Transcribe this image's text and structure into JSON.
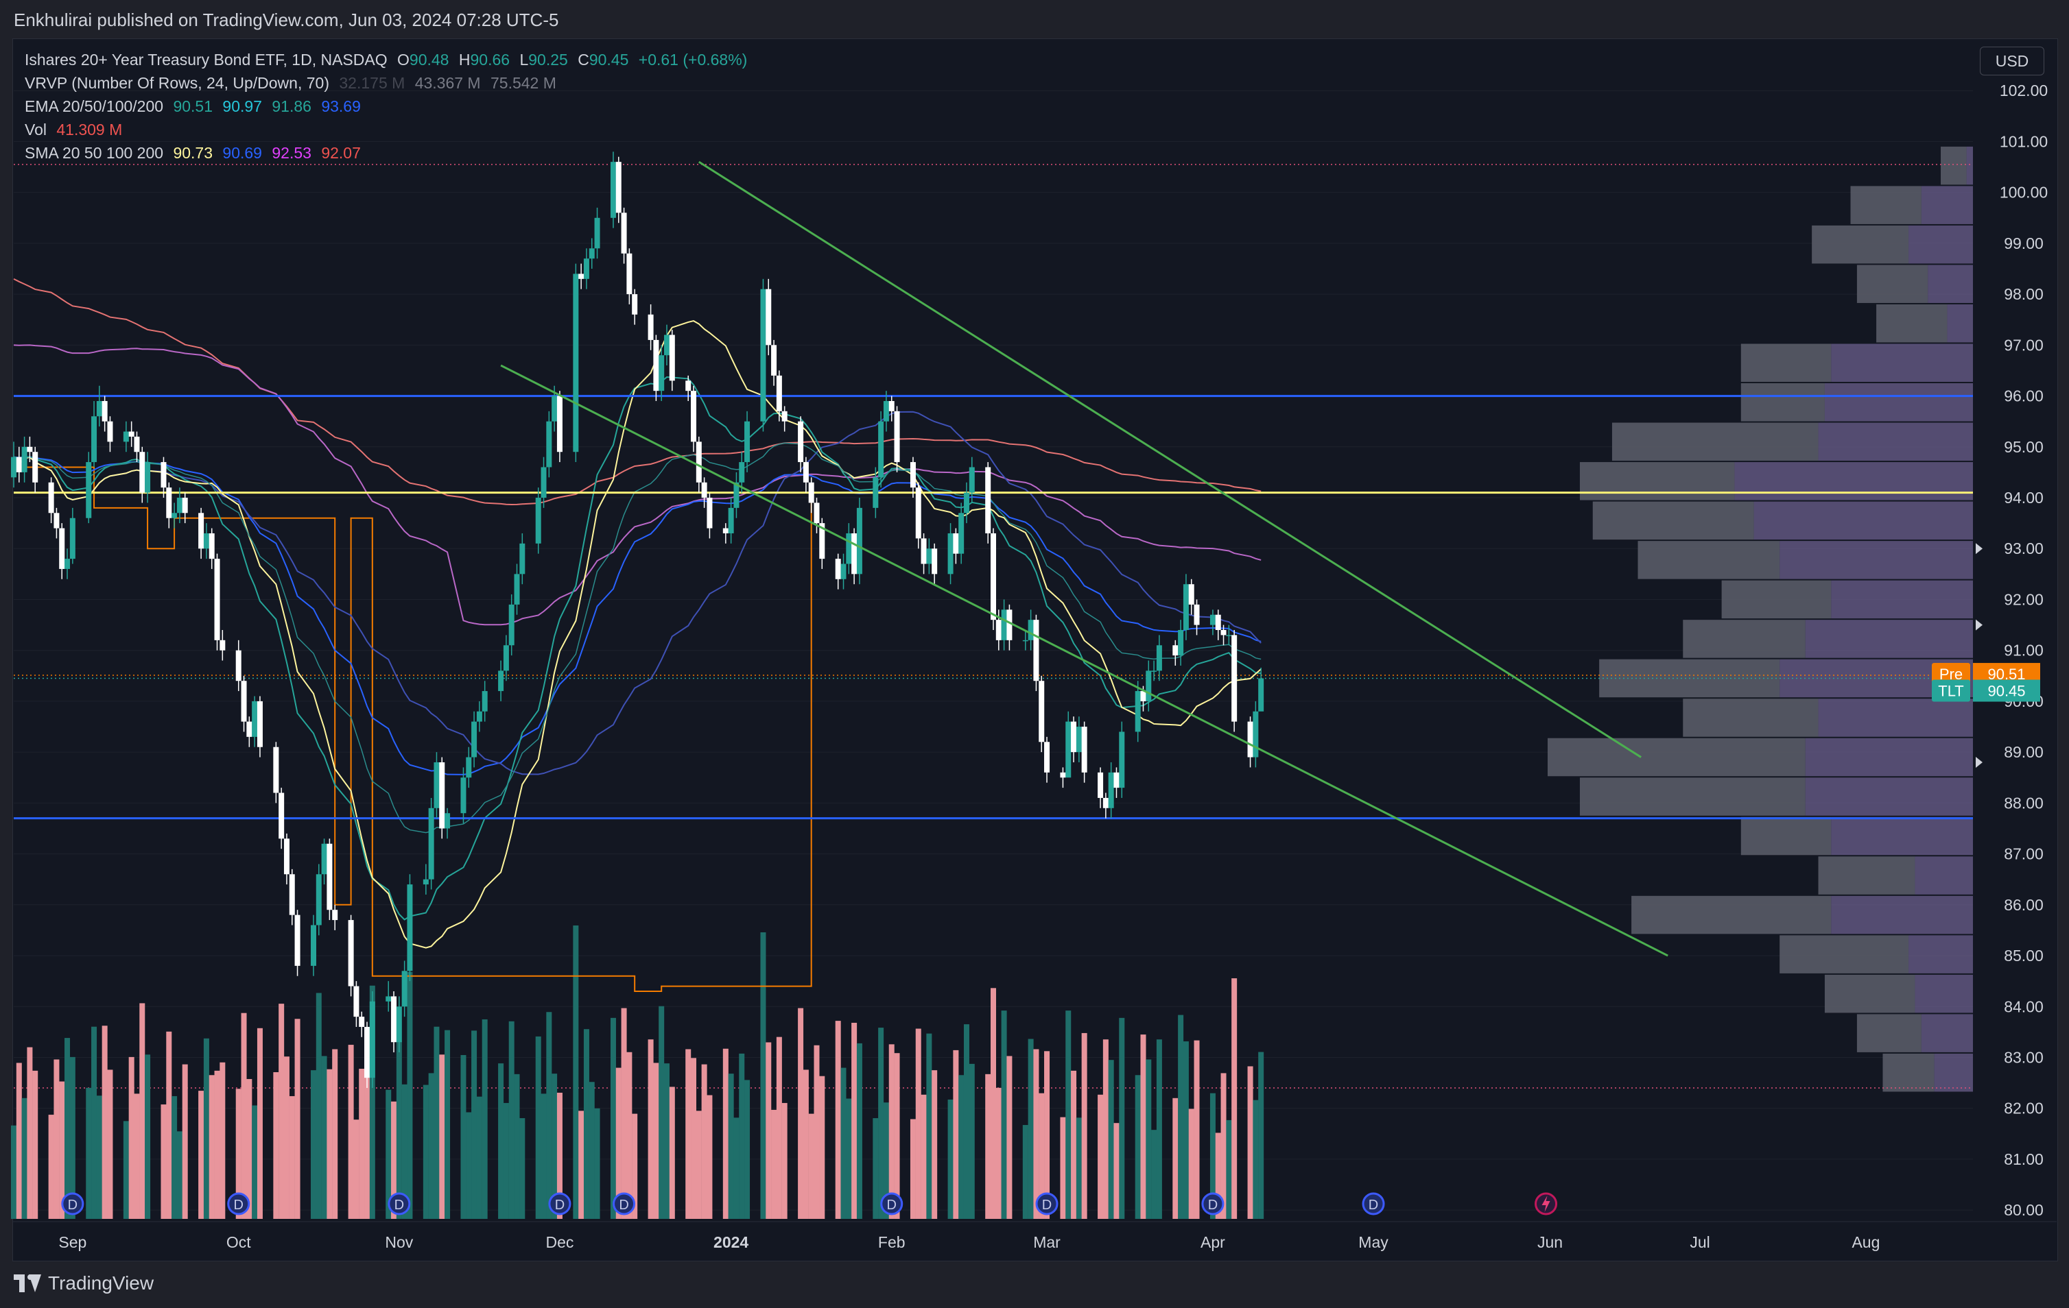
{
  "header": {
    "published": "Enkhulirai published on TradingView.com, Jun 03, 2024 07:28 UTC-5"
  },
  "footer": {
    "brand": "TradingView"
  },
  "toolbar": {
    "currency": "USD"
  },
  "legend": {
    "symbol": {
      "name": "Ishares 20+ Year Treasury Bond ETF, 1D, NASDAQ",
      "o_label": "O",
      "o": "90.48",
      "h_label": "H",
      "h": "90.66",
      "l_label": "L",
      "l": "90.25",
      "c_label": "C",
      "c": "90.45",
      "change": "+0.61 (+0.68%)"
    },
    "vrvp": {
      "label": "VRVP (Number Of Rows, 24, Up/Down, 70)",
      "v1": "32.175 M",
      "v2": "43.367 M",
      "v3": "75.542 M"
    },
    "ema": {
      "label": "EMA 20/50/100/200",
      "v20": "90.51",
      "v50": "90.97",
      "v100": "91.86",
      "v200": "93.69"
    },
    "vol": {
      "label": "Vol",
      "value": "41.309 M"
    },
    "sma": {
      "label": "SMA 20 50 100 200",
      "v20": "90.73",
      "v50": "90.69",
      "v100": "92.53",
      "v200": "92.07"
    }
  },
  "colors": {
    "background": "#131722",
    "up": "#26a69a",
    "down": "#ffffff",
    "up_vol": "#1f6f6a",
    "down_vol": "#e8959c",
    "ema20": "#26a69a",
    "ema50": "#2962ff",
    "ema100": "#2f9e8f",
    "ema200": "#e06c6c",
    "sma20": "#fff59d",
    "sma50": "#7e57c2",
    "sma100": "#c060c0",
    "sma200": "#ef6c6c",
    "channel": "#4caf50",
    "support": "#2962ff",
    "pivot": "#fff176",
    "vrvp_up": "#5d5f6b",
    "vrvp_down": "#6b5f8c",
    "orange": "#f57c00"
  },
  "chart_data": {
    "type": "candlestick",
    "ylim": [
      79.8,
      103.0
    ],
    "y_ticks": [
      "80.00",
      "81.00",
      "82.00",
      "83.00",
      "84.00",
      "85.00",
      "86.00",
      "87.00",
      "88.00",
      "89.00",
      "90.00",
      "91.00",
      "92.00",
      "93.00",
      "94.00",
      "95.00",
      "96.00",
      "97.00",
      "98.00",
      "99.00",
      "100.00",
      "101.00",
      "102.00"
    ],
    "y_tick_values": [
      80,
      81,
      82,
      83,
      84,
      85,
      86,
      87,
      88,
      89,
      90,
      91,
      92,
      93,
      94,
      95,
      96,
      97,
      98,
      99,
      100,
      101,
      102
    ],
    "x_ticks": [
      "Sep",
      "Oct",
      "Nov",
      "Dec",
      "2024",
      "Feb",
      "Mar",
      "Apr",
      "May",
      "Jun",
      "Jul",
      "Aug"
    ],
    "x_tick_dates": [
      "2023-09-01",
      "2023-10-02",
      "2023-11-01",
      "2023-12-01",
      "2024-01-02",
      "2024-02-01",
      "2024-03-01",
      "2024-04-01",
      "2024-05-01",
      "2024-06-03",
      "2024-07-01",
      "2024-08-01"
    ],
    "price_labels": [
      {
        "tag": "Pre",
        "value": "90.51"
      },
      {
        "tag": "TLT",
        "value": "90.45"
      }
    ],
    "horizontal_levels": [
      {
        "name": "resistance-level",
        "value": 96.0
      },
      {
        "name": "pivot-level",
        "value": 94.1
      },
      {
        "name": "support-level",
        "value": 87.7
      }
    ],
    "trendlines": [
      {
        "name": "upper-channel",
        "from": [
          "2023-12-27",
          100.6
        ],
        "to": [
          "2024-06-20",
          88.9
        ]
      },
      {
        "name": "lower-channel",
        "from": [
          "2023-11-20",
          96.6
        ],
        "to": [
          "2024-06-25",
          85.0
        ]
      }
    ],
    "candles": {
      "open": [
        94.4,
        94.8,
        94.5,
        95.0,
        94.9,
        94.3,
        93.7,
        93.4,
        92.6,
        92.8,
        93.6,
        94.7,
        95.6,
        95.9,
        95.5,
        95.1,
        95.3,
        95.2,
        94.9,
        94.1,
        94.7,
        94.2,
        93.6,
        93.7,
        94.0,
        93.7,
        93.0,
        93.3,
        92.8,
        91.2,
        91.0,
        90.4,
        89.6,
        89.3,
        90.0,
        89.1,
        88.2,
        87.3,
        86.6,
        85.8,
        84.8,
        85.6,
        86.6,
        87.2,
        85.9,
        85.7,
        84.4,
        83.8,
        83.6,
        82.6,
        84.1,
        84.2,
        83.3,
        84.0,
        84.7,
        86.4,
        86.5,
        87.9,
        88.8,
        87.5,
        87.8,
        88.5,
        88.9,
        89.6,
        89.8,
        90.2,
        90.6,
        91.1,
        91.9,
        92.5,
        93.1,
        94.0,
        94.6,
        95.5,
        96.0,
        94.9,
        98.4,
        98.3,
        98.7,
        98.9,
        99.5,
        100.6,
        99.6,
        98.8,
        98.0,
        97.6,
        97.1,
        96.1,
        96.8,
        97.2,
        96.3,
        96.1,
        95.1,
        94.3,
        94.0,
        93.4,
        93.3,
        93.8,
        94.3,
        94.7,
        95.5,
        98.1,
        97.0,
        96.4,
        95.7,
        95.5,
        94.7,
        94.3,
        93.9,
        93.5,
        92.8,
        92.4,
        92.7,
        93.3,
        92.5,
        93.8,
        94.4,
        95.5,
        95.9,
        95.7,
        94.7,
        94.2,
        93.2,
        92.7,
        93.0,
        92.5,
        93.3,
        92.9,
        93.7,
        94.1,
        94.6,
        93.3,
        91.6,
        91.2,
        91.8,
        91.2,
        91.2,
        91.6,
        90.4,
        89.2,
        88.6,
        88.5,
        89.6,
        89.0,
        89.5,
        88.6,
        88.1,
        87.9,
        88.6,
        88.3,
        89.4,
        90.2,
        90.0,
        90.6,
        90.6,
        91.1,
        90.9,
        91.4,
        92.3,
        91.9,
        91.5,
        91.7,
        91.4,
        91.3,
        91.3,
        89.6,
        88.9,
        89.8
      ],
      "close": [
        94.8,
        94.5,
        95.0,
        94.9,
        94.3,
        93.7,
        93.4,
        92.6,
        92.8,
        93.6,
        94.7,
        95.6,
        95.9,
        95.5,
        95.1,
        95.3,
        95.2,
        94.9,
        94.1,
        94.7,
        94.2,
        93.6,
        93.7,
        94.0,
        93.7,
        93.0,
        93.3,
        92.8,
        91.2,
        91.0,
        90.4,
        89.6,
        89.3,
        90.0,
        89.1,
        88.2,
        87.3,
        86.6,
        85.8,
        84.8,
        85.6,
        86.6,
        87.2,
        85.9,
        85.7,
        84.4,
        83.8,
        83.6,
        82.6,
        84.1,
        84.2,
        83.3,
        84.0,
        84.7,
        86.4,
        86.5,
        87.9,
        88.8,
        87.5,
        87.8,
        88.5,
        88.9,
        89.6,
        89.8,
        90.2,
        90.6,
        91.1,
        91.9,
        92.5,
        93.1,
        94.0,
        94.6,
        95.5,
        96.0,
        94.9,
        98.4,
        98.3,
        98.7,
        98.9,
        99.5,
        100.6,
        99.6,
        98.8,
        98.0,
        97.6,
        97.1,
        96.1,
        96.8,
        97.2,
        96.3,
        96.1,
        95.1,
        94.3,
        94.0,
        93.4,
        93.3,
        93.8,
        94.3,
        94.7,
        95.5,
        98.1,
        97.0,
        96.4,
        95.7,
        95.5,
        94.7,
        94.3,
        93.9,
        93.5,
        92.8,
        92.4,
        92.7,
        93.3,
        92.5,
        93.8,
        94.4,
        95.5,
        95.9,
        95.7,
        94.7,
        94.2,
        93.2,
        92.7,
        93.0,
        92.5,
        93.3,
        92.9,
        93.7,
        94.1,
        94.6,
        93.3,
        91.6,
        91.2,
        91.8,
        91.2,
        91.2,
        91.6,
        90.4,
        89.2,
        88.6,
        88.5,
        89.6,
        89.0,
        89.5,
        88.6,
        88.1,
        87.9,
        88.6,
        88.3,
        89.4,
        90.2,
        90.0,
        90.6,
        90.6,
        91.1,
        90.9,
        91.4,
        92.3,
        91.9,
        91.5,
        91.7,
        91.4,
        91.3,
        91.3,
        89.6,
        88.9,
        89.8,
        90.45
      ],
      "high": [
        95.1,
        95.0,
        95.2,
        95.2,
        95.0,
        94.4,
        93.8,
        93.5,
        93.0,
        93.8,
        94.9,
        95.9,
        96.2,
        96.0,
        95.6,
        95.5,
        95.5,
        95.3,
        95.0,
        94.9,
        94.8,
        94.3,
        93.9,
        94.2,
        94.1,
        93.8,
        93.5,
        93.4,
        92.9,
        91.4,
        91.2,
        90.5,
        89.7,
        90.1,
        90.1,
        89.2,
        88.3,
        87.4,
        86.7,
        85.9,
        85.8,
        86.8,
        87.3,
        87.3,
        86.0,
        85.8,
        84.5,
        83.9,
        83.7,
        84.3,
        84.5,
        84.3,
        84.2,
        84.9,
        86.6,
        86.8,
        88.1,
        89.0,
        88.9,
        87.9,
        88.7,
        89.1,
        89.8,
        90.0,
        90.4,
        90.8,
        91.3,
        92.1,
        92.7,
        93.3,
        94.2,
        94.8,
        95.7,
        96.2,
        96.1,
        98.6,
        98.6,
        98.9,
        99.1,
        99.7,
        100.8,
        100.7,
        99.7,
        98.9,
        98.1,
        97.8,
        97.2,
        97.0,
        97.4,
        97.3,
        96.4,
        96.2,
        95.2,
        94.4,
        94.1,
        93.5,
        94.0,
        94.5,
        94.9,
        95.7,
        98.3,
        98.3,
        97.1,
        96.5,
        95.8,
        95.6,
        94.8,
        94.4,
        94.0,
        93.6,
        92.9,
        92.9,
        93.5,
        93.4,
        94.0,
        94.6,
        95.7,
        96.1,
        96.0,
        95.8,
        94.8,
        94.3,
        93.3,
        93.2,
        93.1,
        93.5,
        93.4,
        93.9,
        94.3,
        94.8,
        94.7,
        93.4,
        91.8,
        92.0,
        91.9,
        91.4,
        91.8,
        91.7,
        90.5,
        89.3,
        88.7,
        89.8,
        89.7,
        89.7,
        89.6,
        88.7,
        88.2,
        88.8,
        88.7,
        89.6,
        90.4,
        90.3,
        90.8,
        90.8,
        91.3,
        91.2,
        91.6,
        92.5,
        92.4,
        92.0,
        91.8,
        91.8,
        91.5,
        91.5,
        91.4,
        89.7,
        90.0,
        90.66
      ],
      "low": [
        94.2,
        94.3,
        94.3,
        94.7,
        94.1,
        93.5,
        93.2,
        92.4,
        92.4,
        92.7,
        93.5,
        94.6,
        95.4,
        95.3,
        94.9,
        94.9,
        95.0,
        94.7,
        93.9,
        93.9,
        94.0,
        93.4,
        93.4,
        93.5,
        93.5,
        92.8,
        92.8,
        92.6,
        91.0,
        90.8,
        90.2,
        89.4,
        89.1,
        89.1,
        88.9,
        88.0,
        87.1,
        86.4,
        85.6,
        84.6,
        84.6,
        85.4,
        86.4,
        85.7,
        85.5,
        84.2,
        83.6,
        83.4,
        82.4,
        82.4,
        83.9,
        83.1,
        83.1,
        83.8,
        84.5,
        86.2,
        86.3,
        87.7,
        87.3,
        87.3,
        87.6,
        88.3,
        88.7,
        89.4,
        89.6,
        90.0,
        90.4,
        90.9,
        91.7,
        92.3,
        92.9,
        93.8,
        94.4,
        95.3,
        94.7,
        94.7,
        98.1,
        98.1,
        98.5,
        98.7,
        99.3,
        99.4,
        98.6,
        97.8,
        97.4,
        96.9,
        95.9,
        95.9,
        96.6,
        96.1,
        95.9,
        94.9,
        94.1,
        93.8,
        93.2,
        93.1,
        93.1,
        93.6,
        94.1,
        94.5,
        95.3,
        96.8,
        96.2,
        95.5,
        95.3,
        94.5,
        94.1,
        93.7,
        93.3,
        92.6,
        92.2,
        92.2,
        92.5,
        92.3,
        92.3,
        93.6,
        94.2,
        95.3,
        95.5,
        94.5,
        94.0,
        93.0,
        92.5,
        92.5,
        92.3,
        92.3,
        92.7,
        92.7,
        93.5,
        93.9,
        93.1,
        91.4,
        91.0,
        91.0,
        91.0,
        91.0,
        91.0,
        90.2,
        89.0,
        88.4,
        88.3,
        88.8,
        88.8,
        88.8,
        88.4,
        87.9,
        87.7,
        87.7,
        88.1,
        88.1,
        89.2,
        89.8,
        89.8,
        90.4,
        90.4,
        90.7,
        90.7,
        91.2,
        91.7,
        91.3,
        91.3,
        91.2,
        91.1,
        91.1,
        89.4,
        88.7,
        88.7,
        90.25
      ]
    },
    "volume_range": [
      0,
      60
    ],
    "vrvp_price_min": 82.3,
    "vrvp_price_max": 100.9,
    "vrvp_rows": [
      {
        "up": 6,
        "down": 8
      },
      {
        "up": 8,
        "down": 10
      },
      {
        "up": 9,
        "down": 14
      },
      {
        "up": 10,
        "down": 20
      },
      {
        "up": 22,
        "down": 31
      },
      {
        "up": 9,
        "down": 15
      },
      {
        "up": 22,
        "down": 14
      },
      {
        "up": 26,
        "down": 35
      },
      {
        "up": 26,
        "down": 40
      },
      {
        "up": 24,
        "down": 21
      },
      {
        "up": 30,
        "down": 28
      },
      {
        "up": 26,
        "down": 19
      },
      {
        "up": 22,
        "down": 17
      },
      {
        "up": 30,
        "down": 22
      },
      {
        "up": 34,
        "down": 25
      },
      {
        "up": 37,
        "down": 24
      },
      {
        "up": 24,
        "down": 32
      },
      {
        "up": 23,
        "down": 13
      },
      {
        "up": 22,
        "down": 14
      },
      {
        "up": 4,
        "down": 11
      },
      {
        "up": 7,
        "down": 11
      },
      {
        "up": 10,
        "down": 15
      },
      {
        "up": 8,
        "down": 11
      },
      {
        "up": 1,
        "down": 4
      }
    ],
    "dividend_markers": [
      "2023-09-01",
      "2023-10-02",
      "2023-11-01",
      "2023-12-01",
      "2023-12-13",
      "2024-02-01",
      "2024-03-01",
      "2024-04-01",
      "2024-05-01"
    ],
    "dividend_label": "D"
  }
}
